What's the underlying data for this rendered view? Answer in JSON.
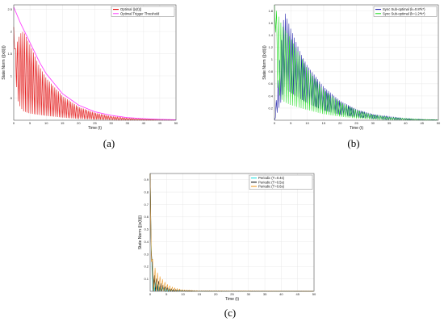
{
  "chart_data": [
    {
      "type": "line",
      "caption": "(a)",
      "xlabel": "Time (t)",
      "ylabel": "State Norm (||x(t)||)",
      "xlim": [
        0,
        50
      ],
      "ylim": [
        0,
        2.6
      ],
      "xticks": [
        "0",
        "5",
        "10",
        "15",
        "20",
        "25",
        "30",
        "35",
        "40",
        "45",
        "50"
      ],
      "yticks": [
        {
          "v": 0.5,
          "label": ".5"
        },
        {
          "v": 1,
          "label": "1"
        },
        {
          "v": 1.5,
          "label": "1.5"
        },
        {
          "v": 2,
          "label": "2"
        },
        {
          "v": 2.5,
          "label": "2.5"
        }
      ],
      "grid": true,
      "legend_position": "top-right",
      "series": [
        {
          "name": "Optimal ||x(t)||",
          "color": "#e00000",
          "kind": "oscillating",
          "x": [
            0,
            0.5,
            1,
            2,
            3,
            5,
            8,
            10,
            15,
            20,
            25,
            30,
            35,
            40,
            50
          ],
          "upper": [
            2.1,
            1.6,
            1.75,
            1.95,
            2.0,
            1.7,
            1.2,
            0.95,
            0.55,
            0.3,
            0.17,
            0.09,
            0.05,
            0.03,
            0.01
          ],
          "lower": [
            2.1,
            1.2,
            0.5,
            0.3,
            0.2,
            0.15,
            0.12,
            0.1,
            0.06,
            0.03,
            0.015,
            0.008,
            0.004,
            0.002,
            0.001
          ]
        },
        {
          "name": "Optimal Trigger Threshold",
          "color": "#ff44ff",
          "kind": "line",
          "x": [
            0,
            2,
            5,
            8,
            10,
            15,
            20,
            25,
            30,
            35,
            40,
            45,
            50
          ],
          "y": [
            2.55,
            2.2,
            1.75,
            1.3,
            1.05,
            0.6,
            0.34,
            0.19,
            0.11,
            0.06,
            0.035,
            0.02,
            0.01
          ]
        }
      ]
    },
    {
      "type": "line",
      "caption": "(b)",
      "xlabel": "Time (t)",
      "ylabel": "State Norm (||x(t)||)",
      "xlim": [
        0,
        50
      ],
      "ylim": [
        0,
        1.9
      ],
      "xticks": [
        "0",
        "5",
        "10",
        "15",
        "20",
        "25",
        "30",
        "35",
        "40",
        "45",
        "50"
      ],
      "yticks": [
        {
          "v": 0.2,
          "label": "0.2"
        },
        {
          "v": 0.4,
          "label": "0.4"
        },
        {
          "v": 0.6,
          "label": "0.6"
        },
        {
          "v": 0.8,
          "label": "0.8"
        },
        {
          "v": 1,
          "label": "1"
        },
        {
          "v": 1.2,
          "label": "1.2"
        },
        {
          "v": 1.4,
          "label": "1.4"
        },
        {
          "v": 1.6,
          "label": "1.6"
        },
        {
          "v": 1.8,
          "label": "1.8"
        }
      ],
      "grid": true,
      "legend_position": "top-right",
      "series": [
        {
          "name": "Sync Sub-optimal (k=0.8*k*)",
          "color": "#1a1aa8",
          "kind": "oscillating",
          "x": [
            0,
            2,
            3,
            5,
            8,
            10,
            15,
            20,
            25,
            30,
            35,
            40,
            45,
            50
          ],
          "upper": [
            0,
            1.2,
            1.8,
            1.5,
            1.1,
            0.9,
            0.55,
            0.32,
            0.18,
            0.1,
            0.06,
            0.03,
            0.015,
            0.008
          ],
          "lower": [
            0,
            0.3,
            0.55,
            0.45,
            0.35,
            0.28,
            0.16,
            0.09,
            0.05,
            0.025,
            0.012,
            0.006,
            0.003,
            0.001
          ]
        },
        {
          "name": "Sync Sub-optimal (k=1.2*k*)",
          "color": "#22dd22",
          "kind": "oscillating",
          "x": [
            0,
            1,
            2,
            3,
            5,
            8,
            10,
            15,
            20,
            25,
            30,
            35,
            40,
            45,
            50
          ],
          "upper": [
            1.9,
            1.75,
            1.6,
            1.5,
            1.35,
            1.05,
            0.85,
            0.5,
            0.3,
            0.17,
            0.09,
            0.05,
            0.03,
            0.015,
            0.008
          ],
          "lower": [
            1.9,
            0.5,
            0.35,
            0.3,
            0.25,
            0.2,
            0.17,
            0.1,
            0.06,
            0.03,
            0.015,
            0.008,
            0.004,
            0.002,
            0.001
          ]
        }
      ]
    },
    {
      "type": "line",
      "caption": "(c)",
      "xlabel": "Time (t)",
      "ylabel": "State Norm (||x(t)||)",
      "xlim": [
        0,
        50
      ],
      "ylim": [
        0,
        0.95
      ],
      "xticks": [
        "0",
        "5",
        "10",
        "15",
        "20",
        "25",
        "30",
        "35",
        "40",
        "45",
        "50"
      ],
      "yticks": [
        {
          "v": 0.1,
          "label": "0.1"
        },
        {
          "v": 0.2,
          "label": "0.2"
        },
        {
          "v": 0.3,
          "label": "0.3"
        },
        {
          "v": 0.4,
          "label": "0.4"
        },
        {
          "v": 0.5,
          "label": "0.5"
        },
        {
          "v": 0.6,
          "label": "0.6"
        },
        {
          "v": 0.7,
          "label": "0.7"
        },
        {
          "v": 0.8,
          "label": "0.8"
        },
        {
          "v": 0.9,
          "label": "0.9"
        }
      ],
      "grid": true,
      "legend_position": "top-right",
      "series": [
        {
          "name": "Periodic (T=0.4s)",
          "color": "#22dddd",
          "kind": "oscillating",
          "x": [
            0,
            0.5,
            1,
            2,
            3,
            4,
            5,
            7,
            10,
            15,
            50
          ],
          "upper": [
            0.95,
            0.2,
            0.1,
            0.06,
            0.04,
            0.03,
            0.02,
            0.01,
            0.005,
            0.002,
            0.001
          ],
          "lower": [
            0.95,
            0.0,
            0.0,
            0.0,
            0.0,
            0.0,
            0.0,
            0.0,
            0.0,
            0.0,
            0.0
          ]
        },
        {
          "name": "Periodic (T=0.5s)",
          "color": "#111111",
          "kind": "oscillating",
          "x": [
            0,
            0.5,
            1,
            2,
            3,
            4,
            5,
            7,
            10,
            15,
            50
          ],
          "upper": [
            0.95,
            0.22,
            0.14,
            0.1,
            0.07,
            0.05,
            0.03,
            0.015,
            0.007,
            0.003,
            0.001
          ],
          "lower": [
            0.95,
            0.0,
            0.0,
            0.0,
            0.0,
            0.0,
            0.0,
            0.0,
            0.0,
            0.0,
            0.0
          ]
        },
        {
          "name": "Periodic (T=0.6s)",
          "color": "#ee9922",
          "kind": "oscillating",
          "x": [
            0,
            0.5,
            1,
            2,
            3,
            4,
            5,
            7,
            10,
            15,
            50
          ],
          "upper": [
            0.95,
            0.3,
            0.22,
            0.16,
            0.12,
            0.09,
            0.06,
            0.03,
            0.012,
            0.004,
            0.001
          ],
          "lower": [
            0.95,
            0.0,
            0.0,
            0.0,
            0.0,
            0.0,
            0.0,
            0.0,
            0.0,
            0.0,
            0.0
          ]
        }
      ]
    }
  ]
}
